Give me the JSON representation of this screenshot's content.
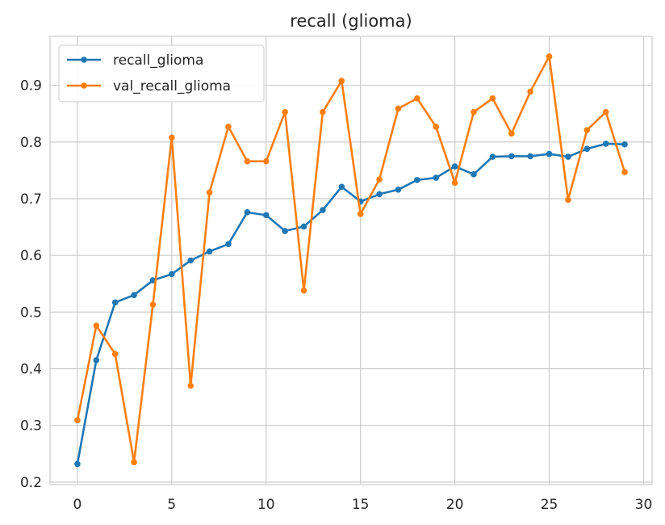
{
  "chart_data": {
    "type": "line",
    "title": "recall (glioma)",
    "xlabel": "",
    "ylabel": "",
    "xlim": [
      -1.45,
      30.45
    ],
    "ylim": [
      0.1955,
      0.9865
    ],
    "x_ticks": [
      0,
      5,
      10,
      15,
      20,
      25,
      30
    ],
    "y_ticks": [
      0.2,
      0.3,
      0.4,
      0.5,
      0.6,
      0.7,
      0.8,
      0.9
    ],
    "grid": true,
    "legend_position": "top-left",
    "x": [
      0,
      1,
      2,
      3,
      4,
      5,
      6,
      7,
      8,
      9,
      10,
      11,
      12,
      13,
      14,
      15,
      16,
      17,
      18,
      19,
      20,
      21,
      22,
      23,
      24,
      25,
      26,
      27,
      28,
      29
    ],
    "series": [
      {
        "name": "recall_glioma",
        "color": "#1f77b4",
        "values": [
          0.232,
          0.415,
          0.517,
          0.53,
          0.556,
          0.567,
          0.591,
          0.607,
          0.62,
          0.676,
          0.671,
          0.643,
          0.651,
          0.68,
          0.721,
          0.695,
          0.708,
          0.716,
          0.733,
          0.737,
          0.757,
          0.743,
          0.774,
          0.775,
          0.775,
          0.779,
          0.774,
          0.788,
          0.797,
          0.796
        ]
      },
      {
        "name": "val_recall_glioma",
        "color": "#ff7f0e",
        "values": [
          0.309,
          0.476,
          0.426,
          0.235,
          0.513,
          0.808,
          0.37,
          0.711,
          0.827,
          0.766,
          0.766,
          0.853,
          0.538,
          0.853,
          0.908,
          0.673,
          0.734,
          0.859,
          0.877,
          0.827,
          0.728,
          0.853,
          0.877,
          0.815,
          0.889,
          0.951,
          0.698,
          0.821,
          0.853,
          0.747
        ]
      }
    ]
  }
}
